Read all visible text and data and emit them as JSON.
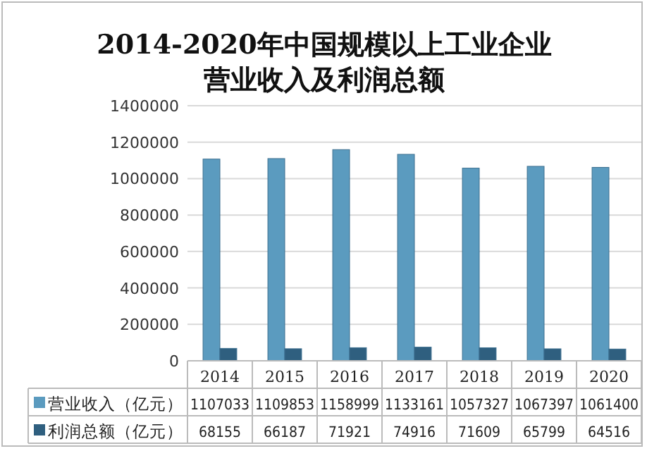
{
  "chart_data": {
    "type": "bar",
    "title": "2014-2020年中国规模以上工业企业营业收入及利润总额",
    "categories": [
      "2014",
      "2015",
      "2016",
      "2017",
      "2018",
      "2019",
      "2020"
    ],
    "series": [
      {
        "name": "营业收入（亿元）",
        "color": "#5b9bbf",
        "values": [
          1107033,
          1109853,
          1158999,
          1133161,
          1057327,
          1067397,
          1061400
        ]
      },
      {
        "name": "利润总额（亿元）",
        "color": "#2f5f7f",
        "values": [
          68155,
          66187,
          71921,
          74916,
          71609,
          65799,
          64516
        ]
      }
    ],
    "ylim": [
      0,
      1400000
    ],
    "yticks": [
      0,
      200000,
      400000,
      600000,
      800000,
      1000000,
      1200000,
      1400000
    ],
    "grid": "y",
    "data_labels": true,
    "legend": "bottom"
  }
}
